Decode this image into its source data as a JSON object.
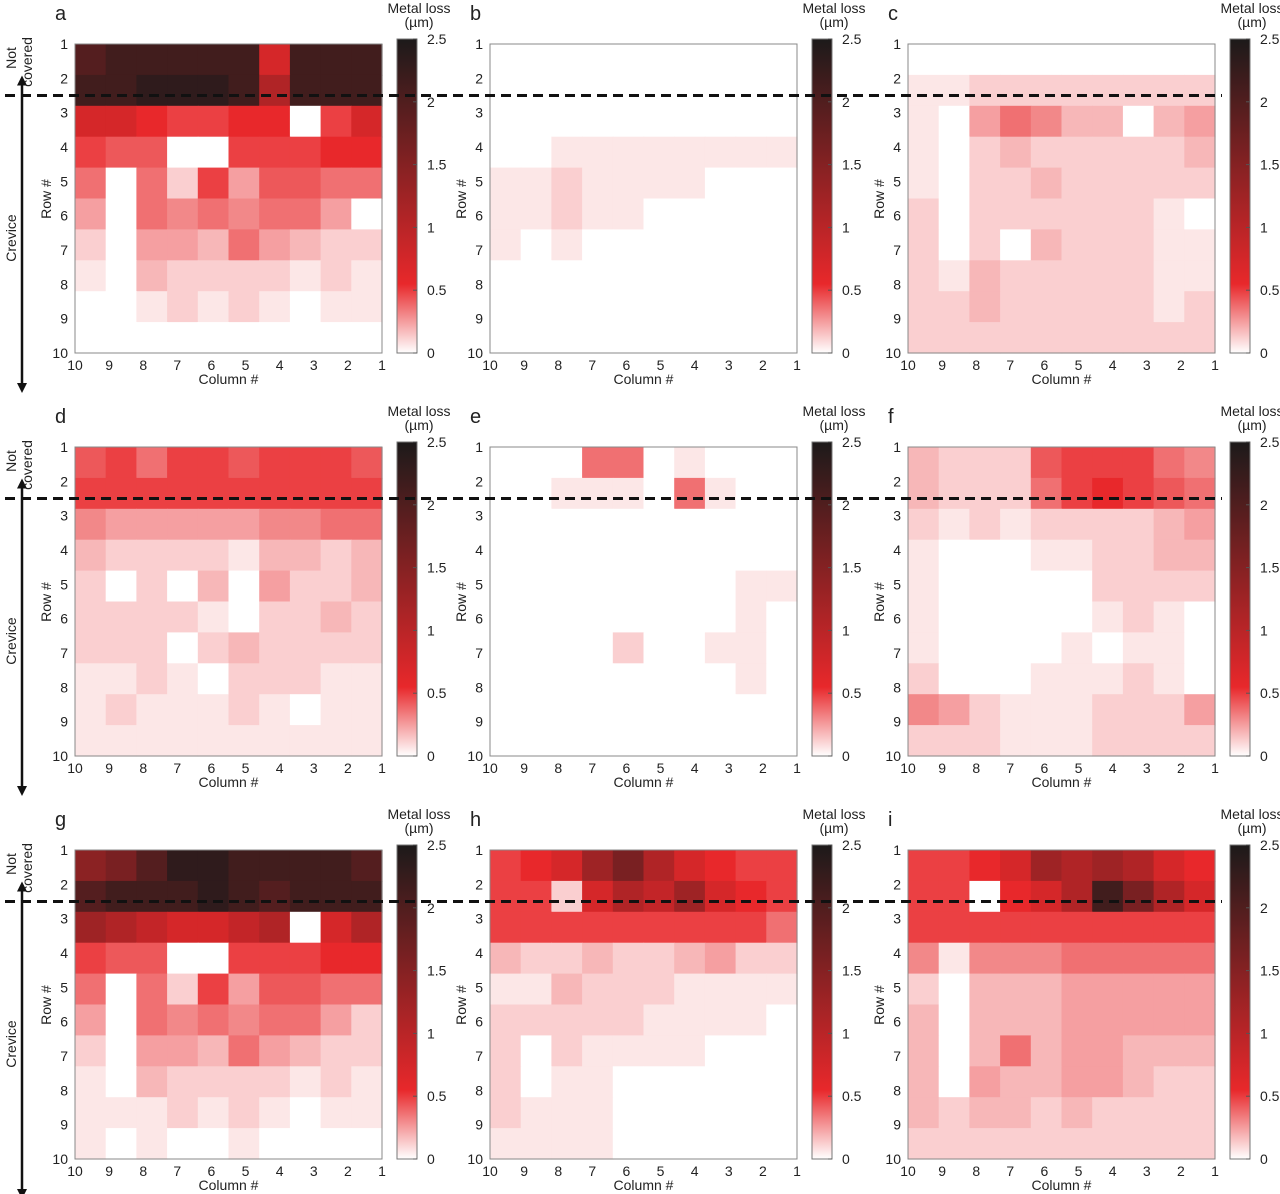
{
  "figure": {
    "side_labels": {
      "not_covered": [
        "Not",
        "covered"
      ],
      "crevice": "Crevice"
    },
    "colorbar": {
      "title": [
        "Metal loss",
        "(µm)"
      ],
      "ticks": [
        "2.5",
        "2",
        "1.5",
        "1",
        "0.5",
        "0"
      ],
      "max": 2.5,
      "colors": {
        "low": "#ffffff",
        "mid": "#e8282b",
        "high": "#1c1a1a"
      }
    },
    "divider_row": 2.5
  },
  "chart_data": [
    {
      "type": "heatmap",
      "panel": "a",
      "xlabel": "Column #",
      "ylabel": "Row #",
      "x": [
        "10",
        "9",
        "8",
        "7",
        "6",
        "5",
        "4",
        "3",
        "2",
        "1"
      ],
      "y": [
        "1",
        "2",
        "3",
        "4",
        "5",
        "6",
        "7",
        "8",
        "9",
        "10"
      ],
      "zlim": [
        0,
        2.5
      ],
      "z": [
        [
          2.1,
          2.2,
          2.3,
          2.3,
          2.3,
          2.3,
          1.2,
          2.3,
          2.3,
          2.2
        ],
        [
          2.2,
          2.3,
          2.4,
          2.4,
          2.4,
          2.3,
          1.5,
          2.3,
          2.3,
          2.3
        ],
        [
          1.3,
          1.2,
          1.1,
          1.0,
          1.0,
          1.1,
          1.1,
          0.0,
          1.0,
          1.2
        ],
        [
          1.0,
          0.9,
          0.9,
          0.0,
          0.0,
          1.0,
          1.0,
          1.0,
          1.1,
          1.1
        ],
        [
          0.8,
          0.0,
          0.7,
          0.2,
          1.0,
          0.5,
          0.9,
          0.9,
          0.7,
          0.8
        ],
        [
          0.5,
          0.0,
          0.7,
          0.6,
          0.7,
          0.6,
          0.7,
          0.8,
          0.5,
          0.0
        ],
        [
          0.3,
          0.0,
          0.5,
          0.5,
          0.4,
          0.7,
          0.5,
          0.4,
          0.3,
          0.2
        ],
        [
          0.1,
          0.0,
          0.4,
          0.3,
          0.2,
          0.3,
          0.3,
          0.1,
          0.2,
          0.1
        ],
        [
          0.0,
          0.0,
          0.1,
          0.2,
          0.1,
          0.2,
          0.1,
          0.0,
          0.1,
          0.1
        ],
        [
          0.0,
          0.0,
          0.0,
          0.0,
          0.0,
          0.0,
          0.0,
          0.0,
          0.0,
          0.0
        ]
      ]
    },
    {
      "type": "heatmap",
      "panel": "b",
      "xlabel": "Column #",
      "ylabel": "Row #",
      "x": [
        "10",
        "9",
        "8",
        "7",
        "6",
        "5",
        "4",
        "3",
        "2",
        "1"
      ],
      "y": [
        "1",
        "2",
        "3",
        "4",
        "5",
        "6",
        "7",
        "8",
        "9",
        "10"
      ],
      "zlim": [
        0,
        2.5
      ],
      "z": [
        [
          0,
          0,
          0,
          0,
          0,
          0,
          0,
          0,
          0,
          0
        ],
        [
          0,
          0,
          0,
          0,
          0,
          0,
          0,
          0,
          0,
          0
        ],
        [
          0,
          0,
          0,
          0,
          0,
          0,
          0,
          0,
          0,
          0
        ],
        [
          0,
          0.05,
          0.15,
          0.15,
          0.12,
          0.1,
          0.15,
          0.12,
          0.12,
          0.08
        ],
        [
          0.1,
          0.12,
          0.25,
          0.15,
          0.18,
          0.1,
          0.1,
          0.05,
          0,
          0
        ],
        [
          0.15,
          0.1,
          0.2,
          0.12,
          0.1,
          0.05,
          0.05,
          0,
          0,
          0
        ],
        [
          0.1,
          0,
          0.1,
          0,
          0.05,
          0,
          0,
          0,
          0,
          0
        ],
        [
          0.05,
          0,
          0.05,
          0.05,
          0,
          0,
          0,
          0,
          0,
          0
        ],
        [
          0,
          0,
          0,
          0,
          0,
          0,
          0.05,
          0,
          0,
          0
        ],
        [
          0,
          0,
          0,
          0,
          0,
          0,
          0,
          0,
          0,
          0
        ]
      ]
    },
    {
      "type": "heatmap",
      "panel": "c",
      "xlabel": "Column #",
      "ylabel": "Row #",
      "x": [
        "10",
        "9",
        "8",
        "7",
        "6",
        "5",
        "4",
        "3",
        "2",
        "1"
      ],
      "y": [
        "1",
        "2",
        "3",
        "4",
        "5",
        "6",
        "7",
        "8",
        "9",
        "10"
      ],
      "zlim": [
        0,
        2.5
      ],
      "z": [
        [
          0,
          0,
          0,
          0,
          0,
          0,
          0,
          0,
          0,
          0
        ],
        [
          0.1,
          0.1,
          0.2,
          0.3,
          0.3,
          0.3,
          0.3,
          0.3,
          0.2,
          0.2
        ],
        [
          0.1,
          0,
          0.5,
          0.7,
          0.6,
          0.4,
          0.4,
          0,
          0.4,
          0.5
        ],
        [
          0.1,
          0,
          0.3,
          0.4,
          0.3,
          0.3,
          0.3,
          0.3,
          0.3,
          0.4
        ],
        [
          0.15,
          0,
          0.3,
          0.2,
          0.35,
          0.3,
          0.3,
          0.3,
          0.2,
          0.2
        ],
        [
          0.2,
          0,
          0.25,
          0.2,
          0.3,
          0.3,
          0.25,
          0.2,
          0.1,
          0
        ],
        [
          0.2,
          0,
          0.3,
          0,
          0.35,
          0.25,
          0.2,
          0.2,
          0.1,
          0.1
        ],
        [
          0.25,
          0.1,
          0.35,
          0.3,
          0.3,
          0.2,
          0.25,
          0.2,
          0.15,
          0.1
        ],
        [
          0.3,
          0.3,
          0.35,
          0.25,
          0.3,
          0.3,
          0.25,
          0.2,
          0.15,
          0.2
        ],
        [
          0.3,
          0.25,
          0.3,
          0.3,
          0.2,
          0.3,
          0.3,
          0.2,
          0.2,
          0.2
        ]
      ]
    },
    {
      "type": "heatmap",
      "panel": "d",
      "xlabel": "Column #",
      "ylabel": "Row #",
      "x": [
        "10",
        "9",
        "8",
        "7",
        "6",
        "5",
        "4",
        "3",
        "2",
        "1"
      ],
      "y": [
        "1",
        "2",
        "3",
        "4",
        "5",
        "6",
        "7",
        "8",
        "9",
        "10"
      ],
      "zlim": [
        0,
        2.5
      ],
      "z": [
        [
          0.9,
          1.0,
          0.8,
          1.0,
          1.0,
          0.9,
          1.0,
          1.0,
          1.0,
          0.9
        ],
        [
          1.0,
          1.0,
          1.0,
          1.0,
          1.0,
          1.0,
          1.0,
          1.0,
          1.0,
          1.0
        ],
        [
          0.6,
          0.5,
          0.5,
          0.5,
          0.5,
          0.5,
          0.6,
          0.6,
          0.7,
          0.8
        ],
        [
          0.4,
          0.3,
          0.3,
          0.2,
          0.2,
          0.1,
          0.4,
          0.4,
          0.3,
          0.4
        ],
        [
          0.3,
          0,
          0.2,
          0,
          0.4,
          0,
          0.5,
          0.3,
          0.3,
          0.4
        ],
        [
          0.3,
          0.2,
          0.2,
          0.2,
          0.1,
          0,
          0.3,
          0.3,
          0.4,
          0.3
        ],
        [
          0.2,
          0.2,
          0.2,
          0,
          0.3,
          0.4,
          0.3,
          0.2,
          0.2,
          0.2
        ],
        [
          0.1,
          0.1,
          0.2,
          0.1,
          0,
          0.2,
          0.2,
          0.2,
          0.1,
          0.1
        ],
        [
          0.1,
          0.2,
          0.1,
          0.1,
          0.1,
          0.2,
          0.1,
          0,
          0.1,
          0.1
        ],
        [
          0.1,
          0.1,
          0.1,
          0.1,
          0.1,
          0.1,
          0.1,
          0.1,
          0.1,
          0.1
        ]
      ]
    },
    {
      "type": "heatmap",
      "panel": "e",
      "xlabel": "Column #",
      "ylabel": "Row #",
      "x": [
        "10",
        "9",
        "8",
        "7",
        "6",
        "5",
        "4",
        "3",
        "2",
        "1"
      ],
      "y": [
        "1",
        "2",
        "3",
        "4",
        "5",
        "6",
        "7",
        "8",
        "9",
        "10"
      ],
      "zlim": [
        0,
        2.5
      ],
      "z": [
        [
          0,
          0,
          0.05,
          0.8,
          0.8,
          0.05,
          0.1,
          0.05,
          0.05,
          0
        ],
        [
          0,
          0,
          0.1,
          0.1,
          0.1,
          0.05,
          0.8,
          0.1,
          0.05,
          0.05
        ],
        [
          0,
          0,
          0,
          0,
          0,
          0,
          0,
          0,
          0,
          0.05
        ],
        [
          0,
          0,
          0,
          0,
          0,
          0,
          0,
          0,
          0,
          0.05
        ],
        [
          0,
          0,
          0,
          0,
          0,
          0,
          0,
          0,
          0.1,
          0.1
        ],
        [
          0,
          0,
          0,
          0,
          0,
          0,
          0,
          0.05,
          0.1,
          0.05
        ],
        [
          0,
          0,
          0,
          0,
          0.2,
          0,
          0,
          0.1,
          0.1,
          0
        ],
        [
          0,
          0,
          0,
          0,
          0,
          0,
          0,
          0.05,
          0.1,
          0
        ],
        [
          0,
          0,
          0,
          0,
          0,
          0,
          0,
          0,
          0.05,
          0.05
        ],
        [
          0,
          0,
          0,
          0,
          0,
          0,
          0,
          0,
          0.05,
          0
        ]
      ]
    },
    {
      "type": "heatmap",
      "panel": "f",
      "xlabel": "Column #",
      "ylabel": "Row #",
      "x": [
        "10",
        "9",
        "8",
        "7",
        "6",
        "5",
        "4",
        "3",
        "2",
        "1"
      ],
      "y": [
        "1",
        "2",
        "3",
        "4",
        "5",
        "6",
        "7",
        "8",
        "9",
        "10"
      ],
      "zlim": [
        0,
        2.5
      ],
      "z": [
        [
          0.4,
          0.3,
          0.3,
          0.3,
          0.9,
          1.0,
          1.0,
          1.0,
          0.8,
          0.6
        ],
        [
          0.4,
          0.3,
          0.2,
          0.3,
          0.8,
          1.0,
          1.1,
          1.0,
          0.9,
          0.7
        ],
        [
          0.2,
          0.1,
          0.2,
          0.1,
          0.3,
          0.3,
          0.3,
          0.3,
          0.4,
          0.5
        ],
        [
          0.1,
          0,
          0,
          0,
          0.1,
          0.1,
          0.3,
          0.2,
          0.4,
          0.4
        ],
        [
          0.1,
          0,
          0,
          0,
          0,
          0,
          0.2,
          0.2,
          0.3,
          0.3
        ],
        [
          0.1,
          0,
          0,
          0,
          0,
          0,
          0.1,
          0.2,
          0.1,
          0
        ],
        [
          0.1,
          0,
          0,
          0,
          0,
          0.1,
          0,
          0.1,
          0.1,
          0
        ],
        [
          0.2,
          0,
          0,
          0,
          0.1,
          0.1,
          0.1,
          0.2,
          0.1,
          0
        ],
        [
          0.6,
          0.5,
          0.2,
          0.1,
          0.1,
          0.1,
          0.2,
          0.2,
          0.3,
          0.5
        ],
        [
          0.3,
          0.3,
          0.2,
          0.1,
          0.1,
          0.1,
          0.2,
          0.2,
          0.2,
          0.3
        ]
      ]
    },
    {
      "type": "heatmap",
      "panel": "g",
      "xlabel": "Column #",
      "ylabel": "Row #",
      "x": [
        "10",
        "9",
        "8",
        "7",
        "6",
        "5",
        "4",
        "3",
        "2",
        "1"
      ],
      "y": [
        "1",
        "2",
        "3",
        "4",
        "5",
        "6",
        "7",
        "8",
        "9",
        "10"
      ],
      "zlim": [
        0,
        2.5
      ],
      "z": [
        [
          1.8,
          1.9,
          2.1,
          2.4,
          2.4,
          2.3,
          2.2,
          2.3,
          2.2,
          2.1
        ],
        [
          2.1,
          2.2,
          2.3,
          2.3,
          2.4,
          2.3,
          2.1,
          2.3,
          2.3,
          2.2
        ],
        [
          1.6,
          1.5,
          1.4,
          1.3,
          1.3,
          1.4,
          1.5,
          0.0,
          1.3,
          1.5
        ],
        [
          1.0,
          0.9,
          0.9,
          0.0,
          0.0,
          1.0,
          1.0,
          1.0,
          1.1,
          1.1
        ],
        [
          0.8,
          0.0,
          0.7,
          0.2,
          1.0,
          0.5,
          0.9,
          0.9,
          0.7,
          0.8
        ],
        [
          0.5,
          0.0,
          0.7,
          0.6,
          0.7,
          0.6,
          0.7,
          0.8,
          0.5,
          0.3
        ],
        [
          0.3,
          0.0,
          0.5,
          0.5,
          0.4,
          0.7,
          0.5,
          0.4,
          0.3,
          0.2
        ],
        [
          0.1,
          0.0,
          0.4,
          0.3,
          0.2,
          0.3,
          0.3,
          0.1,
          0.2,
          0.1
        ],
        [
          0.1,
          0.1,
          0.1,
          0.2,
          0.1,
          0.2,
          0.1,
          0.0,
          0.1,
          0.1
        ],
        [
          0.1,
          0.0,
          0.1,
          0.0,
          0.0,
          0.1,
          0.0,
          0.0,
          0.0,
          0.0
        ]
      ]
    },
    {
      "type": "heatmap",
      "panel": "h",
      "xlabel": "Column #",
      "ylabel": "Row #",
      "x": [
        "10",
        "9",
        "8",
        "7",
        "6",
        "5",
        "4",
        "3",
        "2",
        "1"
      ],
      "y": [
        "1",
        "2",
        "3",
        "4",
        "5",
        "6",
        "7",
        "8",
        "9",
        "10"
      ],
      "zlim": [
        0,
        2.5
      ],
      "z": [
        [
          1.0,
          1.1,
          1.2,
          1.6,
          1.9,
          1.5,
          1.3,
          1.1,
          1.0,
          1.0
        ],
        [
          1.0,
          1.0,
          0.2,
          1.3,
          1.5,
          1.4,
          1.6,
          1.3,
          1.1,
          1.0
        ],
        [
          1.0,
          1.0,
          1.0,
          1.0,
          1.0,
          1.0,
          1.0,
          1.0,
          1.0,
          0.8
        ],
        [
          0.4,
          0.2,
          0.3,
          0.4,
          0.3,
          0.3,
          0.4,
          0.5,
          0.3,
          0.2
        ],
        [
          0.1,
          0.1,
          0.4,
          0.2,
          0.2,
          0.2,
          0.1,
          0.1,
          0.1,
          0.1
        ],
        [
          0.2,
          0.3,
          0.3,
          0.2,
          0.2,
          0.1,
          0.1,
          0.1,
          0.1,
          0
        ],
        [
          0.2,
          0,
          0.2,
          0.1,
          0.1,
          0.1,
          0.1,
          0,
          0,
          0
        ],
        [
          0.2,
          0,
          0.1,
          0.1,
          0,
          0,
          0,
          0,
          0,
          0
        ],
        [
          0.2,
          0.1,
          0.1,
          0.1,
          0,
          0,
          0,
          0,
          0,
          0
        ],
        [
          0.1,
          0.1,
          0.1,
          0.1,
          0,
          0,
          0,
          0,
          0,
          0
        ]
      ]
    },
    {
      "type": "heatmap",
      "panel": "i",
      "xlabel": "Column #",
      "ylabel": "Row #",
      "x": [
        "10",
        "9",
        "8",
        "7",
        "6",
        "5",
        "4",
        "3",
        "2",
        "1"
      ],
      "y": [
        "1",
        "2",
        "3",
        "4",
        "5",
        "6",
        "7",
        "8",
        "9",
        "10"
      ],
      "zlim": [
        0,
        2.5
      ],
      "z": [
        [
          1.0,
          1.0,
          1.1,
          1.3,
          1.6,
          1.5,
          1.6,
          1.5,
          1.3,
          1.1
        ],
        [
          1.0,
          1.0,
          0.0,
          1.1,
          1.3,
          1.5,
          2.3,
          1.9,
          1.5,
          1.2
        ],
        [
          1.0,
          1.0,
          1.0,
          1.0,
          1.0,
          1.0,
          1.0,
          1.0,
          1.0,
          1.0
        ],
        [
          0.6,
          0.1,
          0.6,
          0.6,
          0.6,
          0.8,
          0.8,
          0.8,
          0.8,
          0.8
        ],
        [
          0.3,
          0.0,
          0.4,
          0.4,
          0.4,
          0.5,
          0.5,
          0.5,
          0.5,
          0.5
        ],
        [
          0.4,
          0.0,
          0.4,
          0.4,
          0.4,
          0.5,
          0.5,
          0.5,
          0.5,
          0.5
        ],
        [
          0.4,
          0.0,
          0.4,
          0.7,
          0.4,
          0.5,
          0.5,
          0.4,
          0.4,
          0.4
        ],
        [
          0.4,
          0.0,
          0.5,
          0.4,
          0.4,
          0.5,
          0.5,
          0.4,
          0.3,
          0.3
        ],
        [
          0.4,
          0.2,
          0.4,
          0.4,
          0.3,
          0.4,
          0.3,
          0.3,
          0.3,
          0.3
        ],
        [
          0.3,
          0.2,
          0.3,
          0.3,
          0.3,
          0.3,
          0.3,
          0.3,
          0.2,
          0.2
        ]
      ]
    }
  ]
}
